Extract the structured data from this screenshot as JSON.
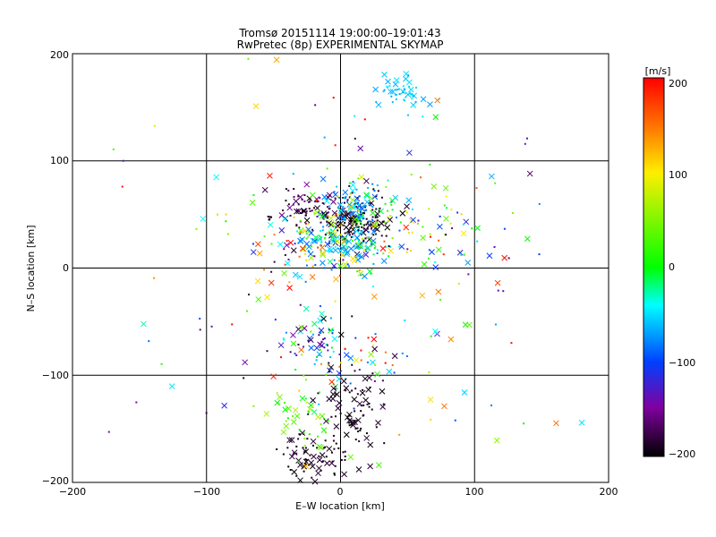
{
  "chart_data": {
    "type": "scatter",
    "title": "Tromsø 20151114 19:00:00–19:01:43",
    "subtitle": "RwPretec (8p) EXPERIMENTAL SKYMAP",
    "xlabel": "E–W location [km]",
    "ylabel": "N–S location [km]",
    "xlim": [
      -200,
      200
    ],
    "ylim": [
      -200,
      200
    ],
    "x_ticks": [
      "−200",
      "−100",
      "0",
      "100",
      "200"
    ],
    "y_ticks": [
      "−200",
      "−100",
      "0",
      "100",
      "200"
    ],
    "grid": true,
    "colorbar": {
      "label": "[m/s]",
      "range": [
        -200,
        200
      ],
      "ticks": [
        "200",
        "100",
        "0",
        "−100",
        "−200"
      ],
      "colormap": "rainbow (black-purple-blue-cyan-green-yellow-red)"
    },
    "markers": [
      "x",
      "dot"
    ],
    "clusters": [
      {
        "x": 15,
        "y": 45,
        "sx": 12,
        "sy": 12,
        "n": 140,
        "vmin": -200,
        "vmax": -180
      },
      {
        "x": -25,
        "y": 55,
        "sx": 15,
        "sy": 10,
        "n": 80,
        "vmin": -200,
        "vmax": -150
      },
      {
        "x": 5,
        "y": 22,
        "sx": 15,
        "sy": 12,
        "n": 120,
        "vmin": -100,
        "vmax": 0
      },
      {
        "x": 10,
        "y": 60,
        "sx": 12,
        "sy": 10,
        "n": 70,
        "vmin": -100,
        "vmax": -20
      },
      {
        "x": 20,
        "y": 40,
        "sx": 30,
        "sy": 20,
        "n": 90,
        "vmin": -20,
        "vmax": 120
      },
      {
        "x": -20,
        "y": 15,
        "sx": 25,
        "sy": 15,
        "n": 70,
        "vmin": -200,
        "vmax": 200
      },
      {
        "x": 45,
        "y": 165,
        "sx": 10,
        "sy": 8,
        "n": 50,
        "vmin": -60,
        "vmax": -20
      },
      {
        "x": -20,
        "y": -65,
        "sx": 15,
        "sy": 10,
        "n": 50,
        "vmin": -200,
        "vmax": 30
      },
      {
        "x": 5,
        "y": -85,
        "sx": 20,
        "sy": 15,
        "n": 50,
        "vmin": -200,
        "vmax": 200
      },
      {
        "x": 10,
        "y": -140,
        "sx": 12,
        "sy": 25,
        "n": 90,
        "vmin": -200,
        "vmax": -180
      },
      {
        "x": -25,
        "y": -175,
        "sx": 12,
        "sy": 15,
        "n": 70,
        "vmin": -200,
        "vmax": -180
      },
      {
        "x": -30,
        "y": -140,
        "sx": 15,
        "sy": 15,
        "n": 40,
        "vmin": -10,
        "vmax": 80
      },
      {
        "x": 60,
        "y": 30,
        "sx": 40,
        "sy": 20,
        "n": 60,
        "vmin": -200,
        "vmax": 200
      },
      {
        "x": 0,
        "y": 0,
        "sx": 90,
        "sy": 110,
        "n": 140,
        "vmin": -200,
        "vmax": 200
      }
    ]
  }
}
